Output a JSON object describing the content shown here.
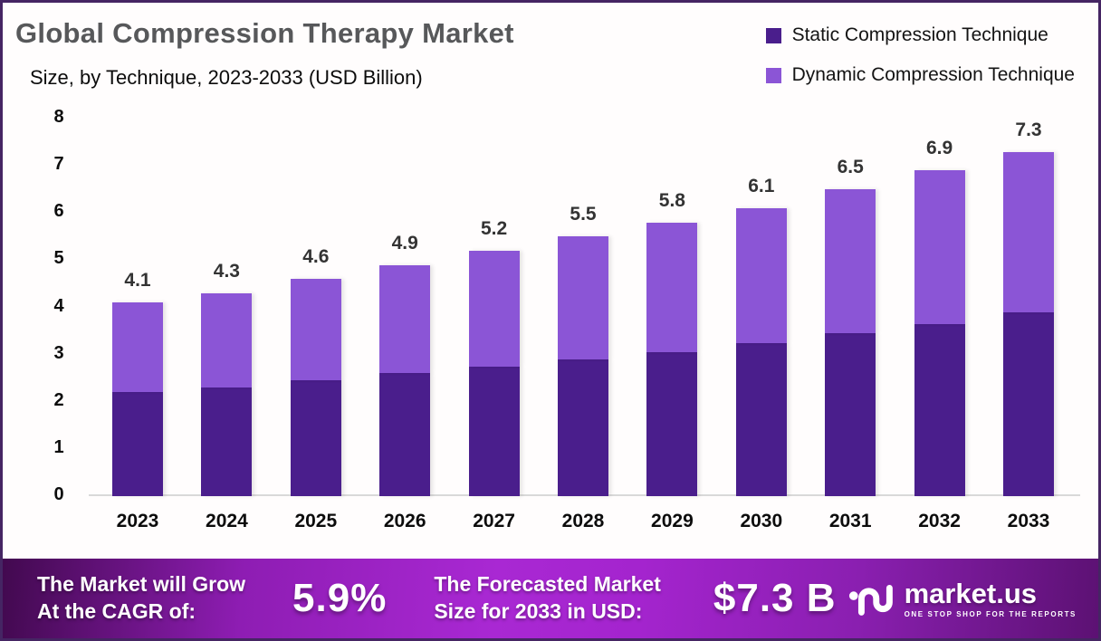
{
  "frame": {
    "border_color": "#452563",
    "background": "#ffffff"
  },
  "header": {
    "title": "Global Compression Therapy Market",
    "subtitle": "Size, by Technique, 2023-2033 (USD Billion)"
  },
  "legend": {
    "items": [
      {
        "label": "Static Compression Technique",
        "color": "#4A1E8C"
      },
      {
        "label": "Dynamic Compression Technique",
        "color": "#8B55D6"
      }
    ]
  },
  "chart_data": {
    "type": "bar",
    "stacked": true,
    "title": "Global Compression Therapy Market",
    "subtitle": "Size, by Technique, 2023-2033 (USD Billion)",
    "unit": "USD Billion",
    "categories": [
      "2023",
      "2024",
      "2025",
      "2026",
      "2027",
      "2028",
      "2029",
      "2030",
      "2031",
      "2032",
      "2033"
    ],
    "series": [
      {
        "name": "Static Compression Technique",
        "color": "#4A1E8C",
        "values": [
          2.2,
          2.3,
          2.45,
          2.6,
          2.75,
          2.9,
          3.05,
          3.25,
          3.45,
          3.65,
          3.9
        ]
      },
      {
        "name": "Dynamic Compression Technique",
        "color": "#8B55D6",
        "values": [
          1.9,
          2.0,
          2.15,
          2.3,
          2.45,
          2.6,
          2.75,
          2.85,
          3.05,
          3.25,
          3.4
        ]
      }
    ],
    "totals": [
      4.1,
      4.3,
      4.6,
      4.9,
      5.2,
      5.5,
      5.8,
      6.1,
      6.5,
      6.9,
      7.3
    ],
    "ylim": [
      0,
      8
    ],
    "yticks": [
      0,
      1,
      2,
      3,
      4,
      5,
      6,
      7,
      8
    ],
    "grid": false,
    "legend_position": "top-right"
  },
  "banner": {
    "cagr_label_line1": "The Market will Grow",
    "cagr_label_line2": "At the CAGR of:",
    "cagr_value": "5.9%",
    "forecast_label_line1": "The Forecasted Market",
    "forecast_label_line2": "Size for 2033 in USD:",
    "forecast_value": "$7.3 B",
    "logo_text": "market.us",
    "logo_tagline": "ONE STOP SHOP FOR THE REPORTS"
  }
}
